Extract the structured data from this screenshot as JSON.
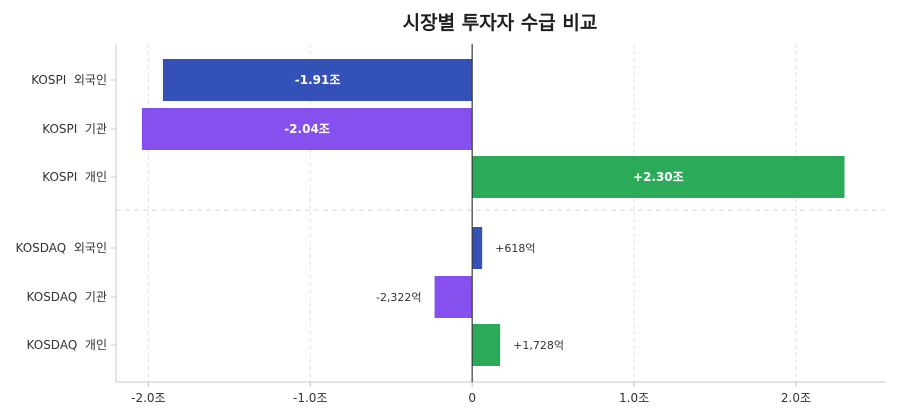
{
  "chart_data": {
    "type": "bar",
    "orientation": "horizontal",
    "title": "시장별 투자자 수급 비교",
    "xlabel": "",
    "ylabel": "",
    "xlim": [
      -2.2,
      2.55
    ],
    "grid": true,
    "colors": {
      "외국인": "#3451b8",
      "기관": "#8650ee",
      "개인": "#2bab5a"
    },
    "x_ticks": [
      {
        "value": -2.0,
        "label": "-2.0조"
      },
      {
        "value": -1.0,
        "label": "-1.0조"
      },
      {
        "value": 0,
        "label": "0"
      },
      {
        "value": 1.0,
        "label": "1.0조"
      },
      {
        "value": 2.0,
        "label": "2.0조"
      }
    ],
    "bars": [
      {
        "category": "KOSPI  외국인",
        "investor": "외국인",
        "value": -1.91,
        "label": "-1.91조"
      },
      {
        "category": "KOSPI  기관",
        "investor": "기관",
        "value": -2.04,
        "label": "-2.04조"
      },
      {
        "category": "KOSPI  개인",
        "investor": "개인",
        "value": 2.3,
        "label": "+2.30조"
      },
      {
        "category": "KOSDAQ  외국인",
        "investor": "외국인",
        "value": 0.0618,
        "label": "+618억"
      },
      {
        "category": "KOSDAQ  기관",
        "investor": "기관",
        "value": -0.2322,
        "label": "-2,322억"
      },
      {
        "category": "KOSDAQ  개인",
        "investor": "개인",
        "value": 0.1728,
        "label": "+1,728억"
      }
    ]
  }
}
